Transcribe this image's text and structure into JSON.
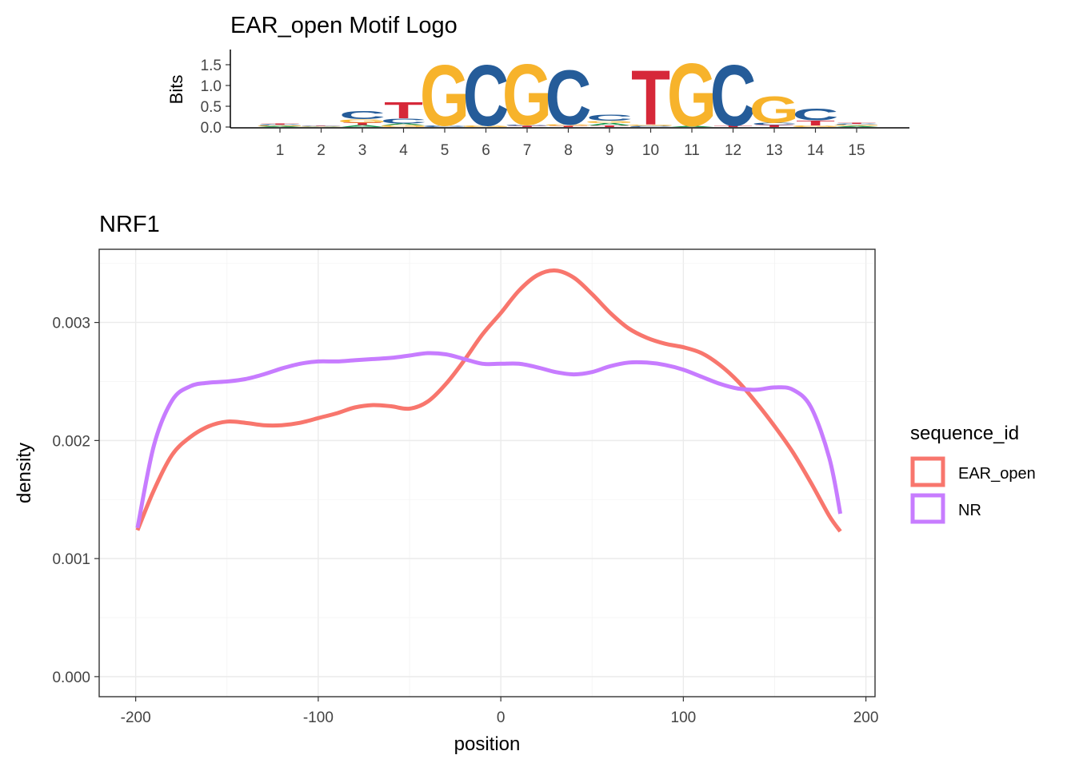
{
  "chart_data": [
    {
      "type": "motif_logo",
      "title": "EAR_open Motif Logo",
      "ylabel": "Bits",
      "ylim": [
        0,
        1.8
      ],
      "yticks": [
        0.0,
        0.5,
        1.0,
        1.5
      ],
      "ytick_labels": [
        "0.0",
        "0.5",
        "1.0",
        "1.5"
      ],
      "positions": [
        1,
        2,
        3,
        4,
        5,
        6,
        7,
        8,
        9,
        10,
        11,
        12,
        13,
        14,
        15
      ],
      "base_colors": {
        "A": "#109648",
        "C": "#255C99",
        "G": "#F7B32B",
        "T": "#D62839"
      },
      "columns": [
        {
          "pos": 1,
          "letters": [
            {
              "b": "A",
              "h": 0.02
            },
            {
              "b": "G",
              "h": 0.02
            },
            {
              "b": "C",
              "h": 0.02
            },
            {
              "b": "T",
              "h": 0.02
            }
          ]
        },
        {
          "pos": 2,
          "letters": [
            {
              "b": "A",
              "h": 0.01
            },
            {
              "b": "G",
              "h": 0.01
            },
            {
              "b": "C",
              "h": 0.01
            },
            {
              "b": "T",
              "h": 0.01
            }
          ]
        },
        {
          "pos": 3,
          "letters": [
            {
              "b": "A",
              "h": 0.05
            },
            {
              "b": "T",
              "h": 0.06
            },
            {
              "b": "G",
              "h": 0.08
            },
            {
              "b": "C",
              "h": 0.2
            }
          ]
        },
        {
          "pos": 4,
          "letters": [
            {
              "b": "G",
              "h": 0.05
            },
            {
              "b": "A",
              "h": 0.04
            },
            {
              "b": "C",
              "h": 0.12
            },
            {
              "b": "T",
              "h": 0.4
            }
          ]
        },
        {
          "pos": 5,
          "letters": [
            {
              "b": "C",
              "h": 0.04
            },
            {
              "b": "G",
              "h": 1.5
            }
          ]
        },
        {
          "pos": 6,
          "letters": [
            {
              "b": "G",
              "h": 0.04
            },
            {
              "b": "C",
              "h": 1.5
            }
          ]
        },
        {
          "pos": 7,
          "letters": [
            {
              "b": "T",
              "h": 0.03
            },
            {
              "b": "C",
              "h": 0.03
            },
            {
              "b": "G",
              "h": 1.5
            }
          ]
        },
        {
          "pos": 8,
          "letters": [
            {
              "b": "T",
              "h": 0.03
            },
            {
              "b": "G",
              "h": 0.04
            },
            {
              "b": "C",
              "h": 1.35
            }
          ]
        },
        {
          "pos": 9,
          "letters": [
            {
              "b": "T",
              "h": 0.04
            },
            {
              "b": "A",
              "h": 0.06
            },
            {
              "b": "G",
              "h": 0.05
            },
            {
              "b": "C",
              "h": 0.15
            }
          ]
        },
        {
          "pos": 10,
          "letters": [
            {
              "b": "C",
              "h": 0.03
            },
            {
              "b": "G",
              "h": 0.03
            },
            {
              "b": "T",
              "h": 1.35
            }
          ]
        },
        {
          "pos": 11,
          "letters": [
            {
              "b": "A",
              "h": 0.03
            },
            {
              "b": "G",
              "h": 1.55
            }
          ]
        },
        {
          "pos": 12,
          "letters": [
            {
              "b": "T",
              "h": 0.04
            },
            {
              "b": "C",
              "h": 1.5
            }
          ]
        },
        {
          "pos": 13,
          "letters": [
            {
              "b": "T",
              "h": 0.05
            },
            {
              "b": "C",
              "h": 0.06
            },
            {
              "b": "G",
              "h": 0.65
            }
          ]
        },
        {
          "pos": 14,
          "letters": [
            {
              "b": "G",
              "h": 0.04
            },
            {
              "b": "T",
              "h": 0.12
            },
            {
              "b": "C",
              "h": 0.3
            }
          ]
        },
        {
          "pos": 15,
          "letters": [
            {
              "b": "A",
              "h": 0.03
            },
            {
              "b": "G",
              "h": 0.03
            },
            {
              "b": "C",
              "h": 0.02
            },
            {
              "b": "T",
              "h": 0.02
            }
          ]
        }
      ]
    },
    {
      "type": "line",
      "title": "NRF1",
      "xlabel": "position",
      "ylabel": "density",
      "xlim": [
        -220,
        205
      ],
      "ylim": [
        -0.00017,
        0.00362
      ],
      "xticks": [
        -200,
        -100,
        0,
        100,
        200
      ],
      "xtick_labels": [
        "-200",
        "-100",
        "0",
        "100",
        "200"
      ],
      "yticks": [
        0.0,
        0.001,
        0.002,
        0.003
      ],
      "ytick_labels": [
        "0.000",
        "0.001",
        "0.002",
        "0.003"
      ],
      "grid": true,
      "legend": {
        "title": "sequence_id",
        "position": "right"
      },
      "series": [
        {
          "name": "EAR_open",
          "color": "#F8766D",
          "x": [
            -199,
            -190,
            -180,
            -170,
            -160,
            -150,
            -140,
            -130,
            -120,
            -110,
            -100,
            -90,
            -80,
            -70,
            -60,
            -50,
            -40,
            -30,
            -20,
            -10,
            0,
            10,
            20,
            30,
            40,
            50,
            60,
            70,
            80,
            90,
            100,
            110,
            120,
            130,
            140,
            150,
            160,
            170,
            180,
            186
          ],
          "y": [
            0.00124,
            0.00158,
            0.00188,
            0.00203,
            0.00212,
            0.00216,
            0.00215,
            0.00213,
            0.00213,
            0.00215,
            0.00219,
            0.00223,
            0.00228,
            0.0023,
            0.00229,
            0.00227,
            0.00233,
            0.00248,
            0.00268,
            0.0029,
            0.00308,
            0.00327,
            0.0034,
            0.00344,
            0.00338,
            0.00324,
            0.00308,
            0.00295,
            0.00287,
            0.00282,
            0.00279,
            0.00274,
            0.00264,
            0.0025,
            0.00232,
            0.00212,
            0.0019,
            0.00164,
            0.00136,
            0.00123
          ]
        },
        {
          "name": "NR",
          "color": "#C77CFF",
          "x": [
            -199,
            -190,
            -180,
            -170,
            -160,
            -150,
            -140,
            -130,
            -120,
            -110,
            -100,
            -90,
            -80,
            -70,
            -60,
            -50,
            -40,
            -30,
            -20,
            -10,
            0,
            10,
            20,
            30,
            40,
            50,
            60,
            70,
            80,
            90,
            100,
            110,
            120,
            130,
            140,
            150,
            160,
            170,
            180,
            186
          ],
          "y": [
            0.00126,
            0.00196,
            0.00234,
            0.00246,
            0.00249,
            0.0025,
            0.00252,
            0.00256,
            0.00261,
            0.00265,
            0.00267,
            0.00267,
            0.00268,
            0.00269,
            0.0027,
            0.00272,
            0.00274,
            0.00273,
            0.00269,
            0.00265,
            0.00265,
            0.00265,
            0.00262,
            0.00258,
            0.00256,
            0.00258,
            0.00263,
            0.00266,
            0.00266,
            0.00264,
            0.0026,
            0.00254,
            0.00248,
            0.00244,
            0.00243,
            0.00245,
            0.00243,
            0.00228,
            0.00185,
            0.00138
          ]
        }
      ]
    }
  ]
}
